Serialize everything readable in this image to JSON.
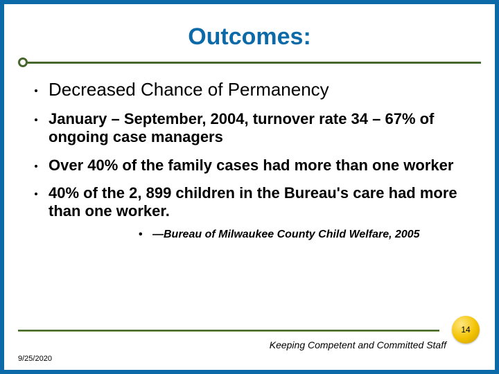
{
  "colors": {
    "slide_bg": "#ffffff",
    "outer_bg": "#0d6aa8",
    "title_color": "#0d6aa8",
    "rule_color": "#47682d",
    "text_color": "#000000",
    "badge_gradient": [
      "#ffe680",
      "#f2c200",
      "#c79a00"
    ]
  },
  "fonts": {
    "title_family": "Trebuchet MS",
    "body_family": "Arial",
    "title_size_pt": 26,
    "body_main_pt": 20,
    "body_bold_pt": 17,
    "citation_pt": 12,
    "footer_right_pt": 11,
    "footer_left_pt": 8
  },
  "title": "Outcomes:",
  "bullets": [
    {
      "style": "main",
      "text": "Decreased Chance of Permanency"
    },
    {
      "style": "bold",
      "text": "January – September, 2004, turnover rate 34 – 67%  of ongoing case managers"
    },
    {
      "style": "bold",
      "text": "Over 40% of the family cases had more than one worker"
    },
    {
      "style": "bold",
      "text": "40% of the 2, 899 children in the Bureau's care had more than one worker."
    }
  ],
  "citation": "—Bureau of Milwaukee County Child Welfare, 2005",
  "page_number": "14",
  "footer_right": "Keeping Competent and Committed Staff",
  "footer_left": "9/25/2020"
}
